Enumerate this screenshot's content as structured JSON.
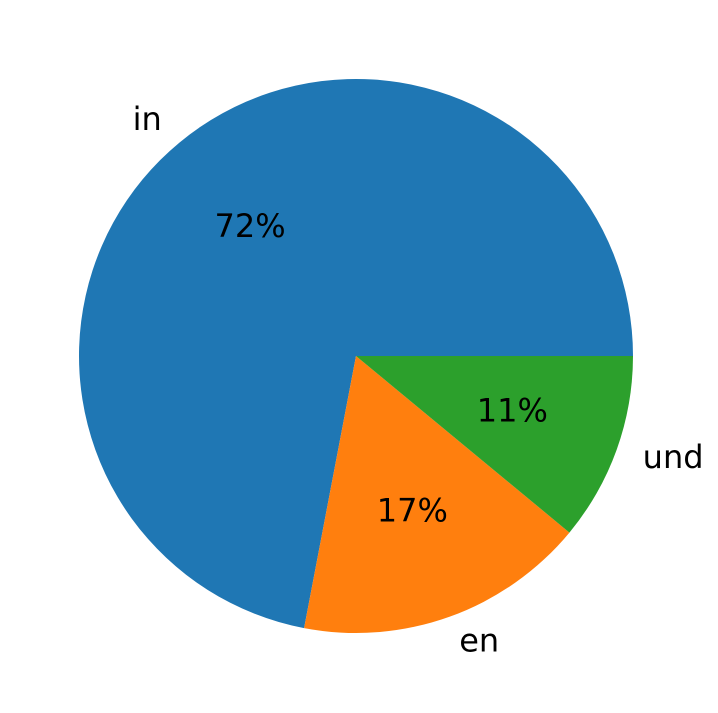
{
  "chart_data": {
    "type": "pie",
    "categories": [
      "in",
      "en",
      "und"
    ],
    "values": [
      72,
      17,
      11
    ],
    "value_labels": [
      "72%",
      "17%",
      "11%"
    ],
    "colors": [
      "#1f77b4",
      "#ff7f0e",
      "#2ca02c"
    ],
    "start_angle": 0,
    "counterclockwise": true
  }
}
